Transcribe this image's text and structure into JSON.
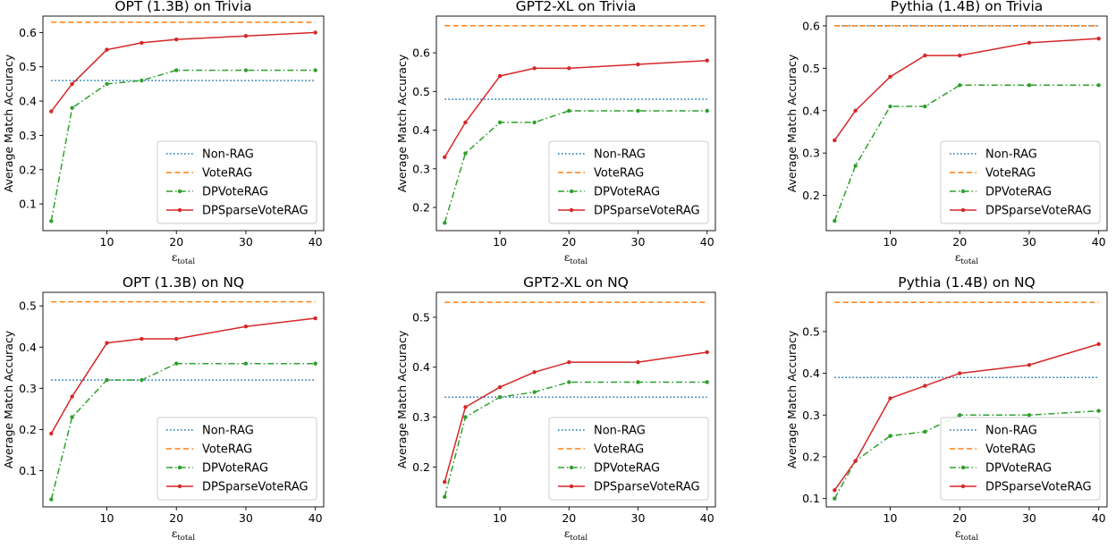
{
  "colors": {
    "non_rag": "#1f77b4",
    "vote_rag": "#ff7f0e",
    "dp_vote_rag": "#2ca02c",
    "dp_sparse_vote_rag": "#d62728"
  },
  "chart_data": [
    {
      "type": "line",
      "title": "OPT (1.3B) on Trivia",
      "xlabel": "ε",
      "xlabel_sub": "total",
      "ylabel": "Average Match Accuracy",
      "x": [
        2,
        5,
        10,
        15,
        20,
        30,
        40
      ],
      "xlim": [
        0.8,
        41.2
      ],
      "ylim": [
        0.022,
        0.648
      ],
      "xticks": [
        10,
        20,
        30,
        40
      ],
      "yticks": [
        0.1,
        0.2,
        0.3,
        0.4,
        0.5,
        0.6
      ],
      "legend": "lower-right",
      "series": [
        {
          "name": "Non-RAG",
          "key": "non_rag",
          "style": "dotted",
          "values": [
            0.46,
            0.46,
            0.46,
            0.46,
            0.46,
            0.46,
            0.46
          ]
        },
        {
          "name": "VoteRAG",
          "key": "vote_rag",
          "style": "dashed",
          "values": [
            0.63,
            0.63,
            0.63,
            0.63,
            0.63,
            0.63,
            0.63
          ]
        },
        {
          "name": "DPVoteRAG",
          "key": "dp_vote_rag",
          "style": "dashdot",
          "markers": true,
          "values": [
            0.05,
            0.38,
            0.45,
            0.46,
            0.49,
            0.49,
            0.49
          ]
        },
        {
          "name": "DPSparseVoteRAG",
          "key": "dp_sparse_vote_rag",
          "style": "solid",
          "markers": true,
          "values": [
            0.37,
            0.45,
            0.55,
            0.57,
            0.58,
            0.59,
            0.6
          ]
        }
      ]
    },
    {
      "type": "line",
      "title": "GPT2-XL on Trivia",
      "xlabel": "ε",
      "xlabel_sub": "total",
      "ylabel": "Average Match Accuracy",
      "x": [
        2,
        5,
        10,
        15,
        20,
        30,
        40
      ],
      "xlim": [
        0.8,
        41.2
      ],
      "ylim": [
        0.14,
        0.695
      ],
      "xticks": [
        10,
        20,
        30,
        40
      ],
      "yticks": [
        0.2,
        0.3,
        0.4,
        0.5,
        0.6
      ],
      "legend": "lower-right",
      "series": [
        {
          "name": "Non-RAG",
          "key": "non_rag",
          "style": "dotted",
          "values": [
            0.48,
            0.48,
            0.48,
            0.48,
            0.48,
            0.48,
            0.48
          ]
        },
        {
          "name": "VoteRAG",
          "key": "vote_rag",
          "style": "dashed",
          "values": [
            0.67,
            0.67,
            0.67,
            0.67,
            0.67,
            0.67,
            0.67
          ]
        },
        {
          "name": "DPVoteRAG",
          "key": "dp_vote_rag",
          "style": "dashdot",
          "markers": true,
          "values": [
            0.16,
            0.34,
            0.42,
            0.42,
            0.45,
            0.45,
            0.45
          ]
        },
        {
          "name": "DPSparseVoteRAG",
          "key": "dp_sparse_vote_rag",
          "style": "solid",
          "markers": true,
          "values": [
            0.33,
            0.42,
            0.54,
            0.56,
            0.56,
            0.57,
            0.58
          ]
        }
      ]
    },
    {
      "type": "line",
      "title": "Pythia (1.4B) on Trivia",
      "xlabel": "ε",
      "xlabel_sub": "total",
      "ylabel": "Average Match Accuracy",
      "x": [
        2,
        5,
        10,
        15,
        20,
        30,
        40
      ],
      "xlim": [
        0.8,
        41.2
      ],
      "ylim": [
        0.117,
        0.623
      ],
      "xticks": [
        10,
        20,
        30,
        40
      ],
      "yticks": [
        0.2,
        0.3,
        0.4,
        0.5,
        0.6
      ],
      "legend": "lower-right",
      "series": [
        {
          "name": "Non-RAG",
          "key": "non_rag",
          "style": "dotted",
          "values": [
            0.6,
            0.6,
            0.6,
            0.6,
            0.6,
            0.6,
            0.6
          ]
        },
        {
          "name": "VoteRAG",
          "key": "vote_rag",
          "style": "dashed",
          "values": [
            0.6,
            0.6,
            0.6,
            0.6,
            0.6,
            0.6,
            0.6
          ]
        },
        {
          "name": "DPVoteRAG",
          "key": "dp_vote_rag",
          "style": "dashdot",
          "markers": true,
          "values": [
            0.14,
            0.27,
            0.41,
            0.41,
            0.46,
            0.46,
            0.46
          ]
        },
        {
          "name": "DPSparseVoteRAG",
          "key": "dp_sparse_vote_rag",
          "style": "solid",
          "markers": true,
          "values": [
            0.33,
            0.4,
            0.48,
            0.53,
            0.53,
            0.56,
            0.57
          ]
        }
      ]
    },
    {
      "type": "line",
      "title": "OPT (1.3B) on NQ",
      "xlabel": "ε",
      "xlabel_sub": "total",
      "ylabel": "Average Match Accuracy",
      "x": [
        2,
        5,
        10,
        15,
        20,
        30,
        40
      ],
      "xlim": [
        0.8,
        41.2
      ],
      "ylim": [
        0.012,
        0.533
      ],
      "xticks": [
        10,
        20,
        30,
        40
      ],
      "yticks": [
        0.1,
        0.2,
        0.3,
        0.4,
        0.5
      ],
      "legend": "lower-right",
      "series": [
        {
          "name": "Non-RAG",
          "key": "non_rag",
          "style": "dotted",
          "values": [
            0.32,
            0.32,
            0.32,
            0.32,
            0.32,
            0.32,
            0.32
          ]
        },
        {
          "name": "VoteRAG",
          "key": "vote_rag",
          "style": "dashed",
          "values": [
            0.51,
            0.51,
            0.51,
            0.51,
            0.51,
            0.51,
            0.51
          ]
        },
        {
          "name": "DPVoteRAG",
          "key": "dp_vote_rag",
          "style": "dashdot",
          "markers": true,
          "values": [
            0.03,
            0.23,
            0.32,
            0.32,
            0.36,
            0.36,
            0.36
          ]
        },
        {
          "name": "DPSparseVoteRAG",
          "key": "dp_sparse_vote_rag",
          "style": "solid",
          "markers": true,
          "values": [
            0.19,
            0.28,
            0.41,
            0.42,
            0.42,
            0.45,
            0.47
          ]
        }
      ]
    },
    {
      "type": "line",
      "title": "GPT2-XL on NQ",
      "xlabel": "ε",
      "xlabel_sub": "total",
      "ylabel": "Average Match Accuracy",
      "x": [
        2,
        5,
        10,
        15,
        20,
        30,
        40
      ],
      "xlim": [
        0.8,
        41.2
      ],
      "ylim": [
        0.12,
        0.55
      ],
      "xticks": [
        10,
        20,
        30,
        40
      ],
      "yticks": [
        0.2,
        0.3,
        0.4,
        0.5
      ],
      "legend": "lower-right",
      "series": [
        {
          "name": "Non-RAG",
          "key": "non_rag",
          "style": "dotted",
          "values": [
            0.34,
            0.34,
            0.34,
            0.34,
            0.34,
            0.34,
            0.34
          ]
        },
        {
          "name": "VoteRAG",
          "key": "vote_rag",
          "style": "dashed",
          "values": [
            0.53,
            0.53,
            0.53,
            0.53,
            0.53,
            0.53,
            0.53
          ]
        },
        {
          "name": "DPVoteRAG",
          "key": "dp_vote_rag",
          "style": "dashdot",
          "markers": true,
          "values": [
            0.14,
            0.3,
            0.34,
            0.35,
            0.37,
            0.37,
            0.37
          ]
        },
        {
          "name": "DPSparseVoteRAG",
          "key": "dp_sparse_vote_rag",
          "style": "solid",
          "markers": true,
          "values": [
            0.17,
            0.32,
            0.36,
            0.39,
            0.41,
            0.41,
            0.43
          ]
        }
      ]
    },
    {
      "type": "line",
      "title": "Pythia (1.4B) on NQ",
      "xlabel": "ε",
      "xlabel_sub": "total",
      "ylabel": "Average Match Accuracy",
      "x": [
        2,
        5,
        10,
        15,
        20,
        30,
        40
      ],
      "xlim": [
        0.8,
        41.2
      ],
      "ylim": [
        0.08,
        0.594
      ],
      "xticks": [
        10,
        20,
        30,
        40
      ],
      "yticks": [
        0.1,
        0.2,
        0.3,
        0.4,
        0.5
      ],
      "legend": "lower-right",
      "series": [
        {
          "name": "Non-RAG",
          "key": "non_rag",
          "style": "dotted",
          "values": [
            0.39,
            0.39,
            0.39,
            0.39,
            0.39,
            0.39,
            0.39
          ]
        },
        {
          "name": "VoteRAG",
          "key": "vote_rag",
          "style": "dashed",
          "values": [
            0.57,
            0.57,
            0.57,
            0.57,
            0.57,
            0.57,
            0.57
          ]
        },
        {
          "name": "DPVoteRAG",
          "key": "dp_vote_rag",
          "style": "dashdot",
          "markers": true,
          "values": [
            0.1,
            0.19,
            0.25,
            0.26,
            0.3,
            0.3,
            0.31
          ]
        },
        {
          "name": "DPSparseVoteRAG",
          "key": "dp_sparse_vote_rag",
          "style": "solid",
          "markers": true,
          "values": [
            0.12,
            0.19,
            0.34,
            0.37,
            0.4,
            0.42,
            0.47
          ]
        }
      ]
    }
  ]
}
